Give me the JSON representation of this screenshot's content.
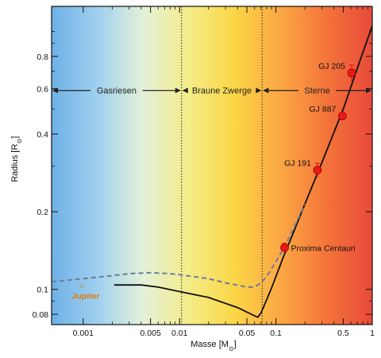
{
  "chart_data": {
    "type": "scatter",
    "title": "",
    "xlabel_main": "Masse",
    "xlabel_unit": "[M",
    "xlabel_sub": "⊙",
    "xlabel_close": "]",
    "ylabel_main": "Radius",
    "ylabel_unit": "[R",
    "ylabel_sub": "⊙",
    "ylabel_close": "]",
    "x_scale": "log",
    "y_scale": "log",
    "xlim": [
      0.00047,
      1.0
    ],
    "ylim": [
      0.073,
      1.25
    ],
    "x_ticks": [
      {
        "value": 0.001,
        "label": "0.001"
      },
      {
        "value": 0.005,
        "label": "0.005"
      },
      {
        "value": 0.01,
        "label": "0.01"
      },
      {
        "value": 0.05,
        "label": "0.05"
      },
      {
        "value": 0.1,
        "label": "0.1"
      },
      {
        "value": 0.5,
        "label": "0.5"
      },
      {
        "value": 1,
        "label": "1"
      }
    ],
    "x_minor_ticks": [
      0.002,
      0.003,
      0.004,
      0.006,
      0.007,
      0.008,
      0.009,
      0.02,
      0.03,
      0.04,
      0.06,
      0.07,
      0.08,
      0.09,
      0.2,
      0.3,
      0.4,
      0.6,
      0.7,
      0.8,
      0.9
    ],
    "y_ticks": [
      {
        "value": 0.08,
        "label": "0.08"
      },
      {
        "value": 0.1,
        "label": "0.1"
      },
      {
        "value": 0.2,
        "label": "0.2"
      },
      {
        "value": 0.4,
        "label": "0.4"
      },
      {
        "value": 0.6,
        "label": "0.6"
      },
      {
        "value": 0.8,
        "label": "0.8"
      }
    ],
    "y_minor_ticks": [
      0.09,
      0.3,
      0.5,
      0.7,
      0.9,
      1.0
    ],
    "region_boundaries": [
      0.0105,
      0.072
    ],
    "regions": [
      {
        "label": "Gasriesen",
        "from": 0.00047,
        "to": 0.0105
      },
      {
        "label": "Braune Zwerge",
        "from": 0.0105,
        "to": 0.072
      },
      {
        "label": "Sterne",
        "from": 0.072,
        "to": 1.0
      }
    ],
    "region_arrow_y": 0.59,
    "series": [
      {
        "style": "solid",
        "color": "#111111",
        "x": [
          0.0021,
          0.004,
          0.006,
          0.01,
          0.02,
          0.04,
          0.06,
          0.065,
          0.07,
          0.078,
          0.09,
          0.1,
          0.12,
          0.15,
          0.2,
          0.3,
          0.5,
          0.7,
          1.0
        ],
        "y": [
          0.104,
          0.104,
          0.102,
          0.098,
          0.093,
          0.085,
          0.079,
          0.078,
          0.081,
          0.089,
          0.101,
          0.112,
          0.134,
          0.164,
          0.214,
          0.31,
          0.5,
          0.72,
          1.05
        ]
      },
      {
        "style": "dashed",
        "color": "#6c7d9a",
        "x": [
          0.00047,
          0.001,
          0.002,
          0.003,
          0.005,
          0.008,
          0.01,
          0.02,
          0.03,
          0.05,
          0.06,
          0.07,
          0.08,
          0.09,
          0.1,
          0.12,
          0.15,
          0.2
        ],
        "y": [
          0.107,
          0.11,
          0.113,
          0.115,
          0.116,
          0.115,
          0.114,
          0.11,
          0.106,
          0.102,
          0.102,
          0.106,
          0.112,
          0.12,
          0.128,
          0.144,
          0.17,
          0.214
        ]
      }
    ],
    "points": [
      {
        "label": "Jupiter",
        "x": 0.00095,
        "y": 0.103,
        "color": "#e07a10",
        "marker": "jupiter-symbol",
        "label_side": "below"
      },
      {
        "label": "Proxima Centauri",
        "x": 0.123,
        "y": 0.145,
        "color": "#e51b1b",
        "marker": "circle",
        "err": 0.006,
        "label_side": "right"
      },
      {
        "label": "GJ 191",
        "x": 0.27,
        "y": 0.29,
        "color": "#e51b1b",
        "marker": "circle",
        "err": 0.018,
        "label_side": "left"
      },
      {
        "label": "GJ 887",
        "x": 0.49,
        "y": 0.47,
        "color": "#e51b1b",
        "marker": "circle",
        "err": 0.01,
        "label_side": "left"
      },
      {
        "label": "GJ 205",
        "x": 0.61,
        "y": 0.69,
        "color": "#e51b1b",
        "marker": "circle",
        "err": 0.05,
        "label_side": "left"
      }
    ],
    "background_gradient": [
      "#6fb1e6",
      "#9fd0ef",
      "#e4f1d9",
      "#f4ec87",
      "#fbd646",
      "#fba744",
      "#f4743a",
      "#e84a3a"
    ],
    "grid": false,
    "legend": "none"
  }
}
